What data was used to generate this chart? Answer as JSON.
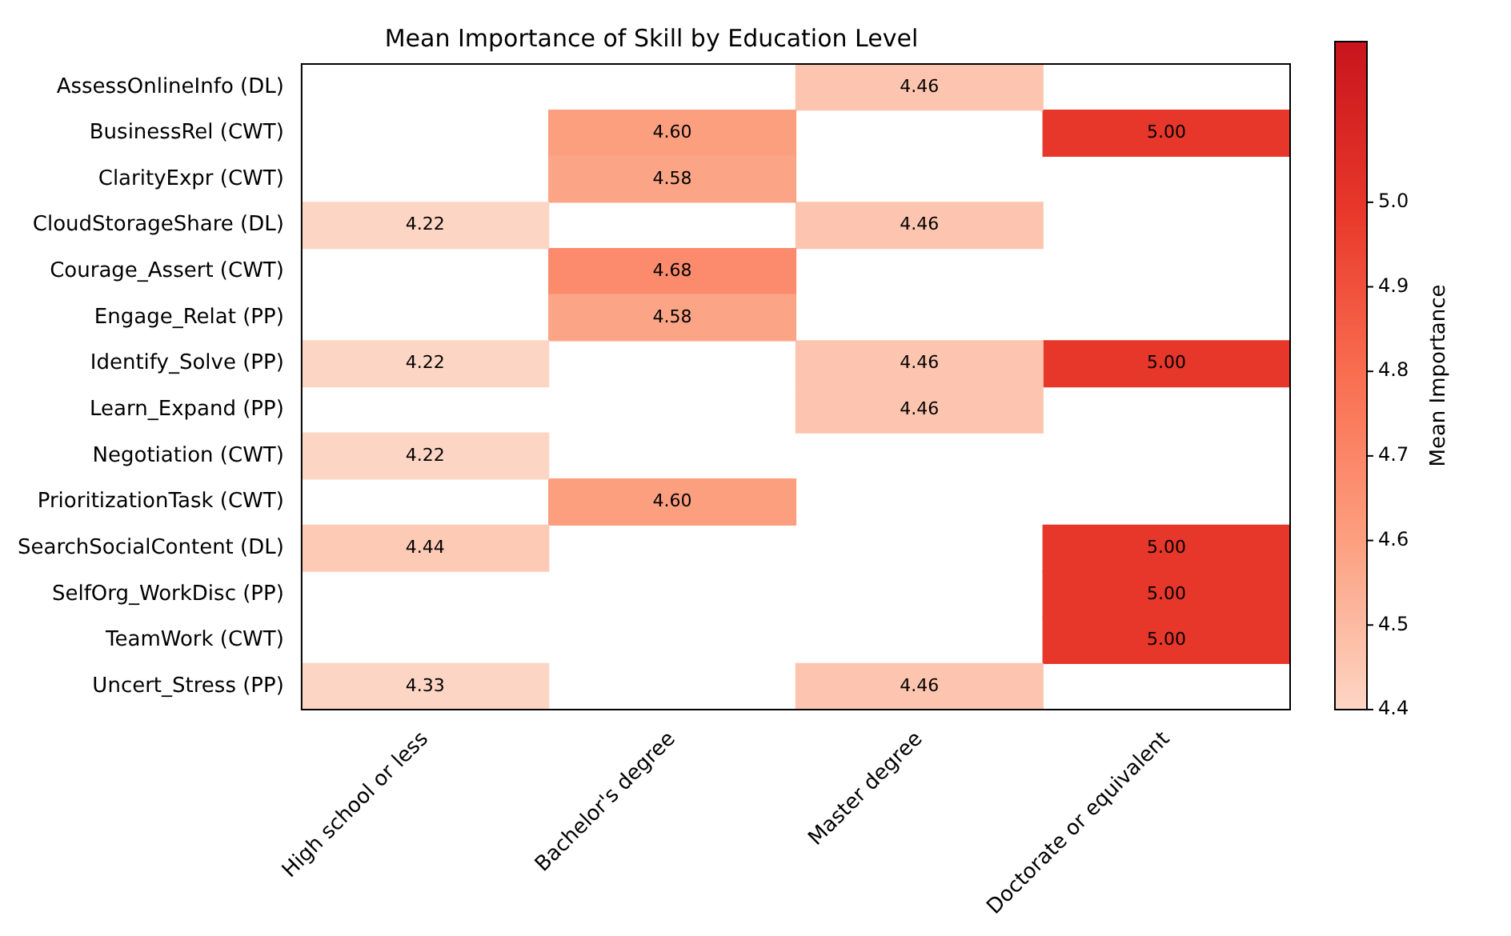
{
  "chart_data": {
    "type": "heatmap",
    "title": "Mean Importance of Skill by Education Level",
    "clabel": "Mean Importance",
    "categories": [
      "High school or less",
      "Bachelor's degree",
      "Master degree",
      "Doctorate or equivalent"
    ],
    "y_categories": [
      "AssessOnlineInfo (DL)",
      "BusinessRel (CWT)",
      "ClarityExpr (CWT)",
      "CloudStorageShare (DL)",
      "Courage_Assert (CWT)",
      "Engage_Relat (PP)",
      "Identify_Solve (PP)",
      "Learn_Expand (PP)",
      "Negotiation (CWT)",
      "PrioritizationTask (CWT)",
      "SearchSocialContent (DL)",
      "SelfOrg_WorkDisc (PP)",
      "TeamWork (CWT)",
      "Uncert_Stress (PP)"
    ],
    "cells": [
      [
        null,
        null,
        4.46,
        null
      ],
      [
        null,
        4.6,
        null,
        5.0
      ],
      [
        null,
        4.58,
        null,
        null
      ],
      [
        4.22,
        null,
        4.46,
        null
      ],
      [
        null,
        4.68,
        null,
        null
      ],
      [
        null,
        4.58,
        null,
        null
      ],
      [
        4.22,
        null,
        4.46,
        5.0
      ],
      [
        null,
        null,
        4.46,
        null
      ],
      [
        4.22,
        null,
        null,
        null
      ],
      [
        null,
        4.6,
        null,
        null
      ],
      [
        4.44,
        null,
        null,
        5.0
      ],
      [
        null,
        null,
        null,
        5.0
      ],
      [
        null,
        null,
        null,
        5.0
      ],
      [
        4.33,
        null,
        4.46,
        null
      ]
    ],
    "cell_labels": [
      [
        null,
        null,
        "4.46",
        null
      ],
      [
        null,
        "4.60",
        null,
        "5.00"
      ],
      [
        null,
        "4.58",
        null,
        null
      ],
      [
        "4.22",
        null,
        "4.46",
        null
      ],
      [
        null,
        "4.68",
        null,
        null
      ],
      [
        null,
        "4.58",
        null,
        null
      ],
      [
        "4.22",
        null,
        "4.46",
        "5.00"
      ],
      [
        null,
        null,
        "4.46",
        null
      ],
      [
        "4.22",
        null,
        null,
        null
      ],
      [
        null,
        "4.60",
        null,
        null
      ],
      [
        "4.44",
        null,
        null,
        "5.00"
      ],
      [
        null,
        null,
        null,
        "5.00"
      ],
      [
        null,
        null,
        null,
        "5.00"
      ],
      [
        "4.33",
        null,
        "4.46",
        null
      ]
    ],
    "clim": [
      4.4,
      5.19
    ],
    "cticks": [
      4.4,
      4.5,
      4.6,
      4.7,
      4.8,
      4.9,
      {
        "value": 5.0,
        "label": "5.0"
      }
    ]
  }
}
